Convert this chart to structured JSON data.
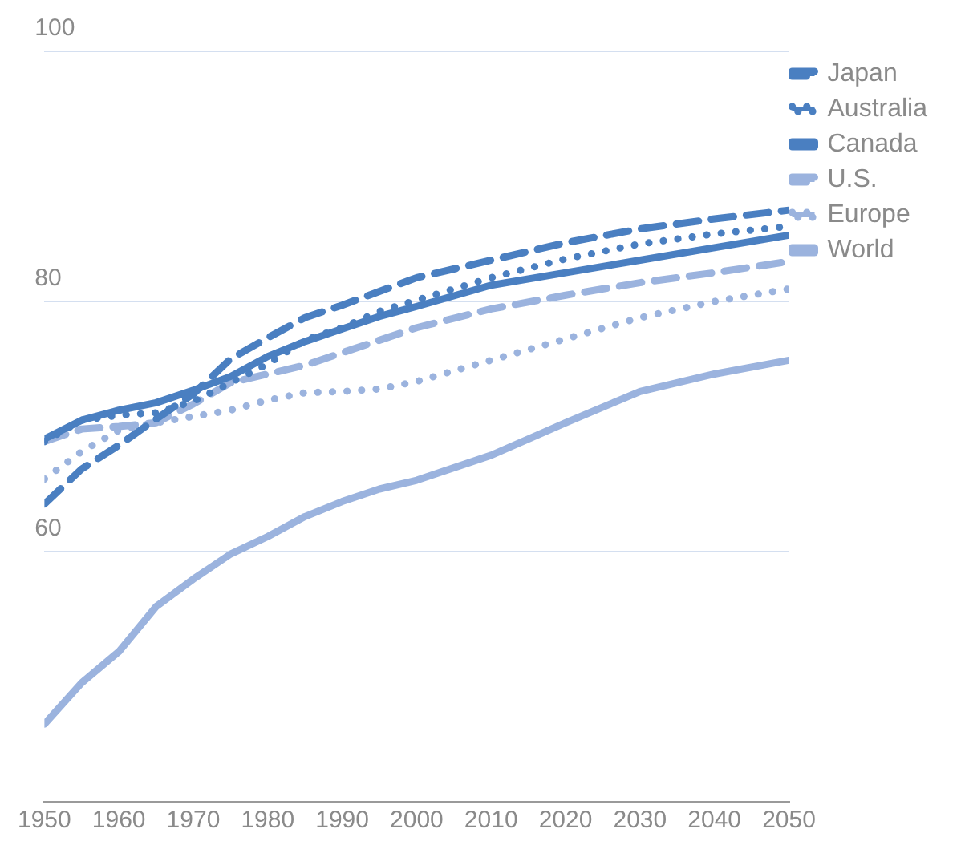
{
  "chart_data": {
    "type": "line",
    "x": [
      1950,
      1955,
      1960,
      1965,
      1970,
      1975,
      1980,
      1985,
      1990,
      1995,
      2000,
      2010,
      2020,
      2030,
      2040,
      2050
    ],
    "series": [
      {
        "name": "Japan",
        "color": "#4a7fc1",
        "line_style": "dashed",
        "values": [
          63.8,
          66.6,
          68.5,
          70.6,
          72.6,
          75.4,
          77.1,
          78.7,
          79.7,
          80.8,
          81.9,
          83.3,
          84.7,
          85.8,
          86.6,
          87.3
        ]
      },
      {
        "name": "Australia",
        "color": "#4a7fc1",
        "line_style": "dotted",
        "values": [
          68.8,
          70.5,
          70.9,
          71.1,
          72,
          73.5,
          75,
          76.9,
          77.9,
          79.2,
          80.1,
          81.9,
          83.4,
          84.6,
          85.4,
          86
        ]
      },
      {
        "name": "Canada",
        "color": "#4a7fc1",
        "line_style": "solid",
        "values": [
          69,
          70.5,
          71.3,
          71.9,
          72.9,
          74,
          75.6,
          76.8,
          77.8,
          78.8,
          79.6,
          81.3,
          82.3,
          83.3,
          84.3,
          85.3
        ]
      },
      {
        "name": "U.S.",
        "color": "#9bb3de",
        "line_style": "dashed",
        "values": [
          68.8,
          69.8,
          70,
          70.3,
          71.8,
          73.5,
          74.2,
          74.9,
          75.9,
          76.9,
          77.9,
          79.4,
          80.5,
          81.5,
          82.3,
          83.2
        ]
      },
      {
        "name": "Europe",
        "color": "#9bb3de",
        "line_style": "dotted",
        "values": [
          65.8,
          68,
          69.7,
          70.3,
          70.8,
          71.3,
          72.1,
          72.7,
          72.8,
          73,
          73.6,
          75.3,
          77,
          78.7,
          80,
          81
        ]
      },
      {
        "name": "World",
        "color": "#9bb3de",
        "line_style": "solid",
        "values": [
          46.2,
          49.5,
          52,
          55.6,
          57.8,
          59.8,
          61.2,
          62.8,
          64,
          65,
          65.7,
          67.7,
          70.3,
          72.8,
          74.2,
          75.3
        ]
      }
    ],
    "xlim": [
      1950,
      2050
    ],
    "xticks": [
      1950,
      1960,
      1970,
      1980,
      1990,
      2000,
      2010,
      2020,
      2030,
      2040,
      2050
    ],
    "ylim": [
      40,
      100
    ],
    "yticks": [
      {
        "value": 40,
        "label": null
      },
      60,
      80,
      100
    ],
    "grid": "y",
    "legend": "right",
    "marker": "none"
  }
}
